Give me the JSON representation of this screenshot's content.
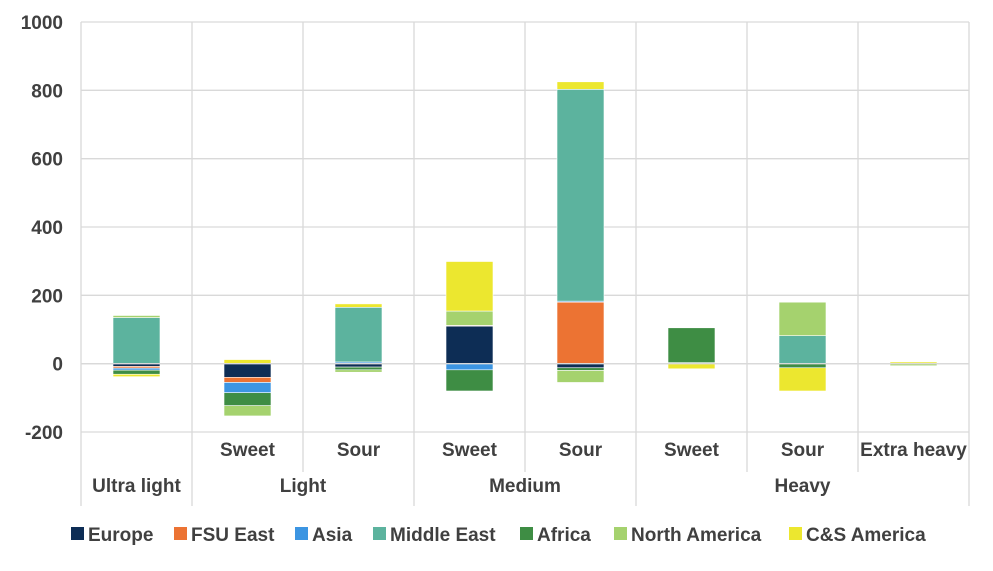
{
  "chart_data": {
    "type": "bar",
    "stacked": true,
    "title": "",
    "xlabel": "",
    "ylabel": "",
    "ylim": [
      -200,
      1000
    ],
    "yticks": [
      -200,
      0,
      200,
      400,
      600,
      800,
      1000
    ],
    "grid": true,
    "legend_position": "bottom",
    "categories": [
      {
        "sub": "",
        "group": "Ultra light"
      },
      {
        "sub": "Sweet",
        "group": "Light"
      },
      {
        "sub": "Sour",
        "group": "Light"
      },
      {
        "sub": "Sweet",
        "group": "Medium"
      },
      {
        "sub": "Sour",
        "group": "Medium"
      },
      {
        "sub": "Sweet",
        "group": "Heavy"
      },
      {
        "sub": "Sour",
        "group": "Heavy"
      },
      {
        "sub": "Extra heavy",
        "group": "Heavy"
      }
    ],
    "groups": [
      {
        "label": "Ultra light",
        "span": 1
      },
      {
        "label": "Light",
        "span": 2
      },
      {
        "label": "Medium",
        "span": 2
      },
      {
        "label": "Heavy",
        "span": 3
      }
    ],
    "series": [
      {
        "name": "Europe",
        "color": "#0d2d55",
        "values": [
          -8,
          -40,
          -10,
          110,
          -12,
          0,
          0,
          0
        ]
      },
      {
        "name": "FSU East",
        "color": "#ec7333",
        "values": [
          -5,
          -15,
          0,
          2,
          180,
          0,
          0,
          0
        ]
      },
      {
        "name": "Asia",
        "color": "#3c95e2",
        "values": [
          -6,
          -30,
          5,
          -18,
          3,
          0,
          0,
          0
        ]
      },
      {
        "name": "Middle East",
        "color": "#5cb39e",
        "values": [
          135,
          0,
          160,
          0,
          620,
          3,
          82,
          0
        ]
      },
      {
        "name": "Africa",
        "color": "#3e8d44",
        "values": [
          -12,
          -38,
          -8,
          -62,
          -8,
          102,
          -12,
          0
        ]
      },
      {
        "name": "North America",
        "color": "#a5d26e",
        "values": [
          6,
          -30,
          -7,
          42,
          -35,
          0,
          98,
          -6
        ]
      },
      {
        "name": "C&S America",
        "color": "#ece72f",
        "values": [
          -7,
          12,
          10,
          145,
          22,
          -15,
          -68,
          5
        ]
      }
    ]
  }
}
